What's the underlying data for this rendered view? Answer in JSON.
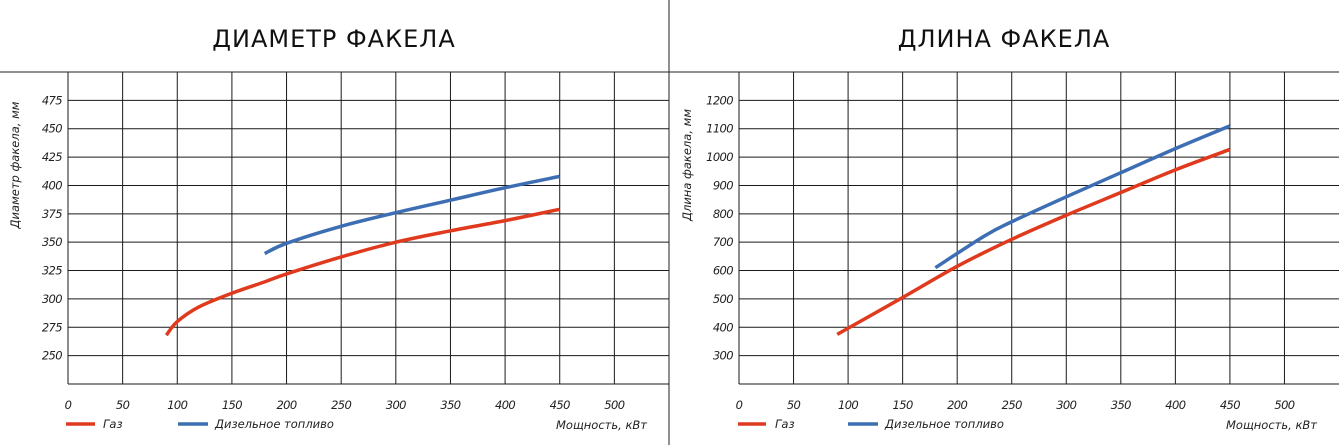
{
  "colors": {
    "gas": "#e03a1e",
    "diesel": "#3d6eb4",
    "grid": "#1a1a1a"
  },
  "chart_data": [
    {
      "type": "line",
      "title": "ДИАМЕТР ФАКЕЛА",
      "ylabel": "Диаметр факела, мм",
      "xlabel": "Мощность, кВт",
      "xlim": [
        0,
        550
      ],
      "ylim": [
        225,
        500
      ],
      "x_ticks": [
        0,
        50,
        100,
        150,
        200,
        250,
        300,
        350,
        400,
        450,
        500
      ],
      "x_tick_labels": [
        "0",
        "50",
        "100",
        "150",
        "200",
        "250",
        "300",
        "350",
        "400",
        "450",
        "500"
      ],
      "y_ticks": [
        250,
        275,
        300,
        325,
        350,
        375,
        400,
        425,
        450,
        475
      ],
      "y_tick_labels": [
        "250",
        "275",
        "300",
        "325",
        "350",
        "375",
        "400",
        "425",
        "450",
        "475"
      ],
      "grid": true,
      "series": [
        {
          "name": "Газ",
          "color_key": "gas",
          "x": [
            90,
            100,
            120,
            150,
            180,
            200,
            250,
            300,
            350,
            400,
            450
          ],
          "y": [
            268,
            280,
            293,
            305,
            315,
            322,
            337,
            350,
            360,
            369,
            379
          ]
        },
        {
          "name": "Дизельное топливо",
          "color_key": "diesel",
          "x": [
            180,
            200,
            250,
            300,
            350,
            400,
            450
          ],
          "y": [
            340,
            349,
            364,
            376,
            387,
            398,
            408
          ]
        }
      ],
      "legend": [
        "Газ",
        "Дизельное топливо"
      ]
    },
    {
      "type": "line",
      "title": "ДЛИНА ФАКЕЛА",
      "ylabel": "Длина факела, мм",
      "xlabel": "Мощность, кВт",
      "xlim": [
        0,
        550
      ],
      "ylim": [
        200,
        1300
      ],
      "x_ticks": [
        0,
        50,
        100,
        150,
        200,
        250,
        300,
        350,
        400,
        450,
        500
      ],
      "x_tick_labels": [
        "0",
        "50",
        "100",
        "150",
        "200",
        "250",
        "300",
        "350",
        "400",
        "450",
        "500"
      ],
      "y_ticks": [
        300,
        400,
        500,
        600,
        700,
        800,
        900,
        1000,
        1100,
        1200
      ],
      "y_tick_labels": [
        "300",
        "400",
        "500",
        "600",
        "700",
        "800",
        "900",
        "1000",
        "1100",
        "1200"
      ],
      "grid": true,
      "series": [
        {
          "name": "Газ",
          "color_key": "gas",
          "x": [
            90,
            150,
            200,
            250,
            300,
            350,
            400,
            450
          ],
          "y": [
            375,
            505,
            615,
            710,
            795,
            875,
            955,
            1027
          ]
        },
        {
          "name": "Дизельное топливо",
          "color_key": "diesel",
          "x": [
            180,
            225,
            250,
            300,
            350,
            400,
            450
          ],
          "y": [
            610,
            722,
            772,
            860,
            945,
            1030,
            1110
          ]
        }
      ],
      "legend": [
        "Газ",
        "Дизельное топливо"
      ]
    }
  ]
}
